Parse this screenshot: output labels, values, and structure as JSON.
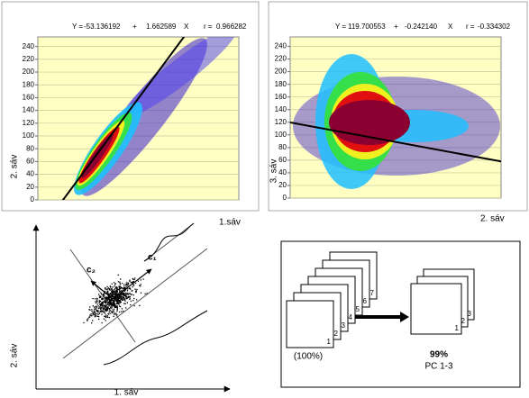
{
  "chart_data": [
    {
      "type": "density-scatter",
      "equation": {
        "y_eq": "Y =",
        "intercept": -53.136192,
        "plus": "+",
        "slope": 1.662589,
        "x_sym": "X",
        "r_eq": "r =",
        "r": 0.966282
      },
      "ylabel": "2. sáv",
      "xlabel": "1.sáv",
      "xlim": [
        0,
        255
      ],
      "ylim": [
        0,
        255
      ],
      "yticks": [
        0,
        20,
        40,
        60,
        80,
        100,
        120,
        140,
        160,
        180,
        200,
        220,
        240
      ],
      "grid": true,
      "line_color": "#000000"
    },
    {
      "type": "density-scatter",
      "equation": {
        "y_eq": "Y =",
        "intercept": 119.700553,
        "plus": "+",
        "slope": {
          "value": -0.24214,
          "label": "-0.242140"
        },
        "x_sym": "X",
        "r_eq": "r =",
        "r": -0.334302
      },
      "ylabel": "3. sáv",
      "xlabel": "2. sáv",
      "xlim": [
        0,
        255
      ],
      "ylim": [
        0,
        255
      ],
      "yticks": [
        0,
        20,
        40,
        60,
        80,
        100,
        120,
        140,
        160,
        180,
        200,
        220,
        240
      ],
      "grid": true,
      "line_color": "#000000"
    }
  ],
  "pca_diagram": {
    "c1": "c₁",
    "c2": "c₂",
    "ylabel": "2. sáv",
    "xlabel": "1. sáv"
  },
  "band_stack": {
    "input_labels": [
      "1",
      "2",
      "3",
      "4",
      "5",
      "6",
      "7"
    ],
    "input_caption": "(100%)",
    "output_labels": [
      "1",
      "2",
      "3"
    ],
    "percent": "99%",
    "output_caption": "PC 1-3"
  }
}
